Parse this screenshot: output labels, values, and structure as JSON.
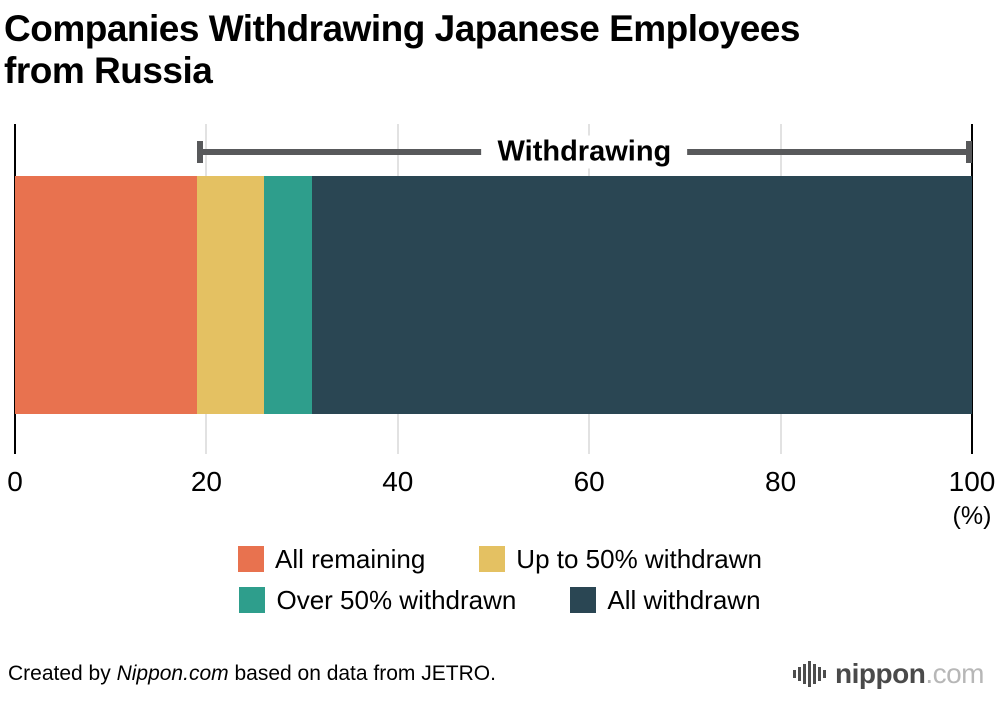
{
  "title": {
    "line1": "Companies Withdrawing Japanese Employees",
    "line2": "from Russia"
  },
  "chart_data": {
    "type": "bar",
    "subtype": "horizontal-stacked",
    "title": "Companies Withdrawing Japanese Employees from Russia",
    "xlim": [
      0,
      100
    ],
    "xticks": [
      0,
      20,
      40,
      60,
      80,
      100
    ],
    "xlabel": "(%)",
    "grid": "vertical",
    "series": [
      {
        "name": "All remaining",
        "value": 19,
        "color": "#e8724f"
      },
      {
        "name": "Up to 50% withdrawn",
        "value": 7,
        "color": "#e4c162"
      },
      {
        "name": "Over 50% withdrawn",
        "value": 5,
        "color": "#2e9e8c"
      },
      {
        "name": "All withdrawn",
        "value": 69,
        "color": "#2a4653"
      }
    ],
    "annotation": {
      "label": "Withdrawing",
      "from": 19,
      "to": 100,
      "color": "#58595b"
    },
    "legend_position": "bottom"
  },
  "footer": {
    "credit_prefix": "Created by ",
    "credit_site": "Nippon.com",
    "credit_suffix": " based on data from JETRO.",
    "logo": {
      "icon": "equalizer-bars-icon",
      "name": "nippon",
      "tld": ".com"
    }
  }
}
